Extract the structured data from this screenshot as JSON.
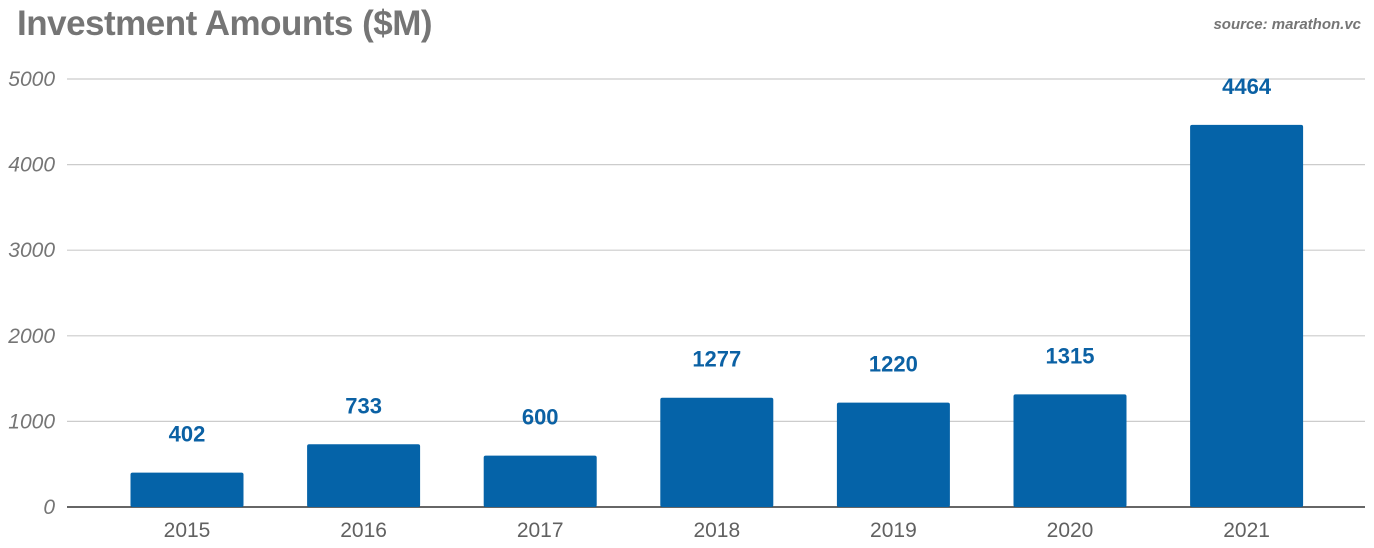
{
  "chart_data": {
    "type": "bar",
    "title": "Investment Amounts ($M)",
    "source": "source: marathon.vc",
    "categories": [
      "2015",
      "2016",
      "2017",
      "2018",
      "2019",
      "2020",
      "2021"
    ],
    "values": [
      402,
      733,
      600,
      1277,
      1220,
      1315,
      4464
    ],
    "xlabel": "",
    "ylabel": "",
    "ylim": [
      0,
      5000
    ],
    "yticks": [
      0,
      1000,
      2000,
      3000,
      4000,
      5000
    ],
    "grid": true,
    "bar_color": "#0563a8",
    "label_color": "#0b61a4"
  }
}
